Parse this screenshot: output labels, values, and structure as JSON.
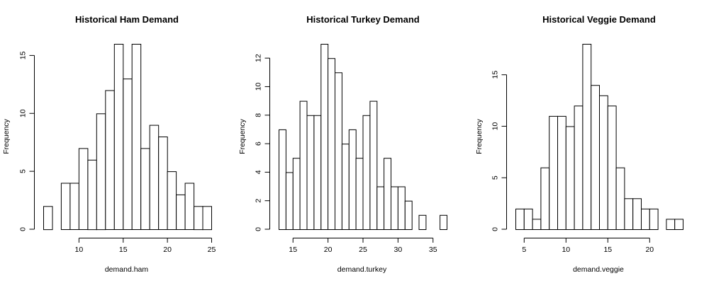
{
  "chart_data": [
    {
      "type": "bar",
      "title": "Historical Ham Demand",
      "xlabel": "demand.ham",
      "ylabel": "Frequency",
      "bin_edges": [
        6,
        7,
        8,
        9,
        10,
        11,
        12,
        13,
        14,
        15,
        16,
        17,
        18,
        19,
        20,
        21,
        22,
        23,
        24,
        25
      ],
      "values": [
        2,
        0,
        4,
        4,
        7,
        6,
        10,
        12,
        16,
        13,
        16,
        7,
        9,
        8,
        5,
        3,
        4,
        2,
        2
      ],
      "xticks": [
        10,
        15,
        20,
        25
      ],
      "yticks": [
        0,
        5,
        10,
        15
      ],
      "xlim": [
        6,
        25
      ],
      "ylim": [
        0,
        16
      ],
      "grid": false
    },
    {
      "type": "bar",
      "title": "Historical Turkey Demand",
      "xlabel": "demand.turkey",
      "ylabel": "Frequency",
      "bin_edges": [
        13,
        14,
        15,
        16,
        17,
        18,
        19,
        20,
        21,
        22,
        23,
        24,
        25,
        26,
        27,
        28,
        29,
        30,
        31,
        32,
        33,
        34,
        35,
        36,
        37
      ],
      "values": [
        7,
        4,
        5,
        9,
        8,
        8,
        13,
        12,
        11,
        6,
        7,
        5,
        8,
        9,
        3,
        5,
        3,
        3,
        2,
        0,
        1,
        0,
        0,
        1
      ],
      "xticks": [
        15,
        20,
        25,
        30,
        35
      ],
      "yticks": [
        0,
        2,
        4,
        6,
        8,
        10,
        12
      ],
      "xlim": [
        13,
        37
      ],
      "ylim": [
        0,
        13
      ],
      "grid": false
    },
    {
      "type": "bar",
      "title": "Historical Veggie Demand",
      "xlabel": "demand.veggie",
      "ylabel": "Frequency",
      "bin_edges": [
        4,
        5,
        6,
        7,
        8,
        9,
        10,
        11,
        12,
        13,
        14,
        15,
        16,
        17,
        18,
        19,
        20,
        21,
        22,
        23,
        24
      ],
      "values": [
        2,
        2,
        1,
        6,
        11,
        11,
        10,
        12,
        18,
        14,
        13,
        12,
        6,
        3,
        3,
        2,
        2,
        0,
        1,
        1
      ],
      "xticks": [
        5,
        10,
        15,
        20
      ],
      "yticks": [
        0,
        5,
        10,
        15
      ],
      "xlim": [
        4,
        24
      ],
      "ylim": [
        0,
        18
      ],
      "grid": false
    }
  ]
}
